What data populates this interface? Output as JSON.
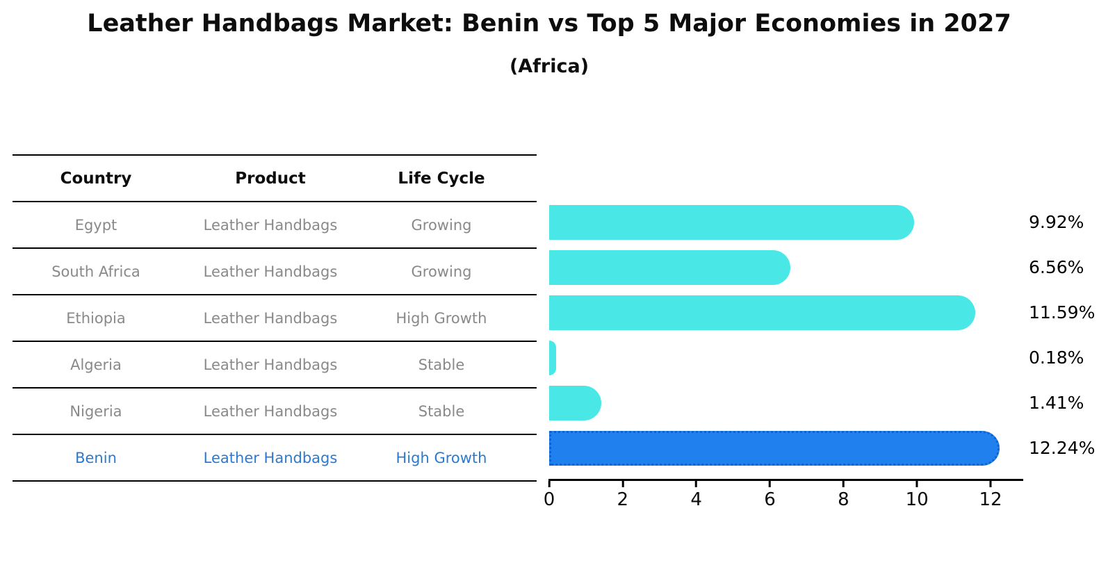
{
  "title": "Leather Handbags Market: Benin vs Top 5 Major Economies in 2027",
  "subtitle": "(Africa)",
  "table": {
    "headers": [
      "Country",
      "Product",
      "Life Cycle"
    ],
    "rows": [
      {
        "country": "Egypt",
        "product": "Leather Handbags",
        "life_cycle": "Growing",
        "highlight": false
      },
      {
        "country": "South Africa",
        "product": "Leather Handbags",
        "life_cycle": "Growing",
        "highlight": false
      },
      {
        "country": "Ethiopia",
        "product": "Leather Handbags",
        "life_cycle": "High Growth",
        "highlight": false
      },
      {
        "country": "Algeria",
        "product": "Leather Handbags",
        "life_cycle": "Stable",
        "highlight": false
      },
      {
        "country": "Nigeria",
        "product": "Leather Handbags",
        "life_cycle": "Stable",
        "highlight": false
      },
      {
        "country": "Benin",
        "product": "Leather Handbags",
        "life_cycle": "High Growth",
        "highlight": true
      }
    ]
  },
  "chart_data": {
    "type": "bar",
    "orientation": "horizontal",
    "title": "Leather Handbags Market: Benin vs Top 5 Major Economies in 2027",
    "subtitle": "(Africa)",
    "categories": [
      "Egypt",
      "South Africa",
      "Ethiopia",
      "Algeria",
      "Nigeria",
      "Benin"
    ],
    "values": [
      9.92,
      6.56,
      11.59,
      0.18,
      1.41,
      12.24
    ],
    "value_labels": [
      "9.92%",
      "6.56%",
      "11.59%",
      "0.18%",
      "1.41%",
      "12.24%"
    ],
    "xticks": [
      0,
      2,
      4,
      6,
      8,
      10,
      12
    ],
    "xlim": [
      0,
      12.85
    ],
    "grid": false,
    "legend": false,
    "bar_color": "#4ae7e7",
    "highlight_index": 5,
    "highlight_bar_color": "#1f80ee",
    "highlight_border_color": "#0f62d0",
    "highlight_text_color": "#2b7ad0",
    "row_text_color": "#898989"
  }
}
